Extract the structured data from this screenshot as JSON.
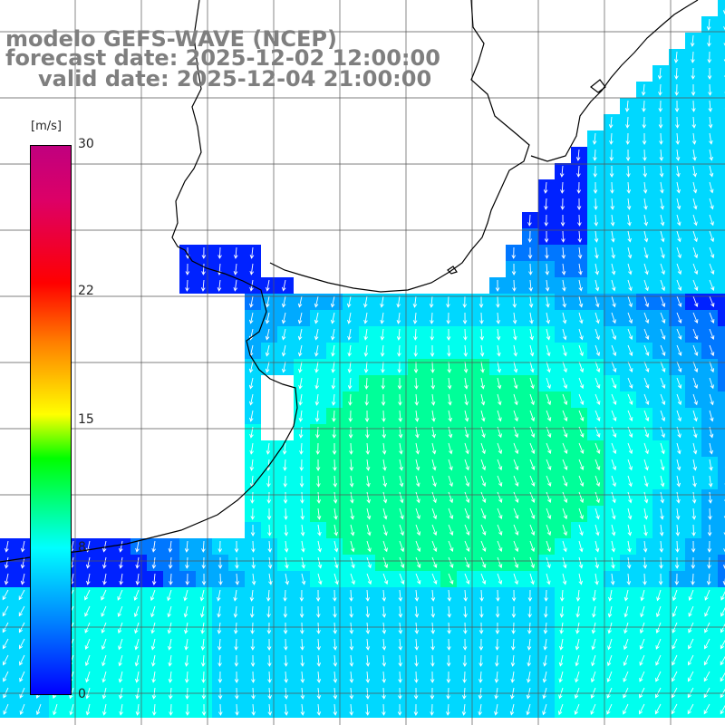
{
  "title": {
    "line1": "modelo GEFS-WAVE (NCEP)",
    "line2": "forecast date: 2025-12-02 12:00:00",
    "line3": "valid date: 2025-12-04 21:00:00"
  },
  "colorbar": {
    "units": "[m/s]",
    "min": 0,
    "max": 30,
    "ticks": [
      {
        "value": 30,
        "label": "30"
      },
      {
        "value": 22,
        "label": "22"
      },
      {
        "value": 15,
        "label": "15"
      },
      {
        "value": 8,
        "label": "8"
      },
      {
        "value": 0,
        "label": "0"
      }
    ],
    "colors": [
      "#0000ff",
      "#0080ff",
      "#00ffff",
      "#00ff00",
      "#ffff00",
      "#ff8000",
      "#ff0000",
      "#c0007f"
    ]
  },
  "map": {
    "land_color": "#ffffff",
    "coastline_color": "#000000",
    "grid_color": "#555555",
    "arrow_color": "#ffffff"
  }
}
